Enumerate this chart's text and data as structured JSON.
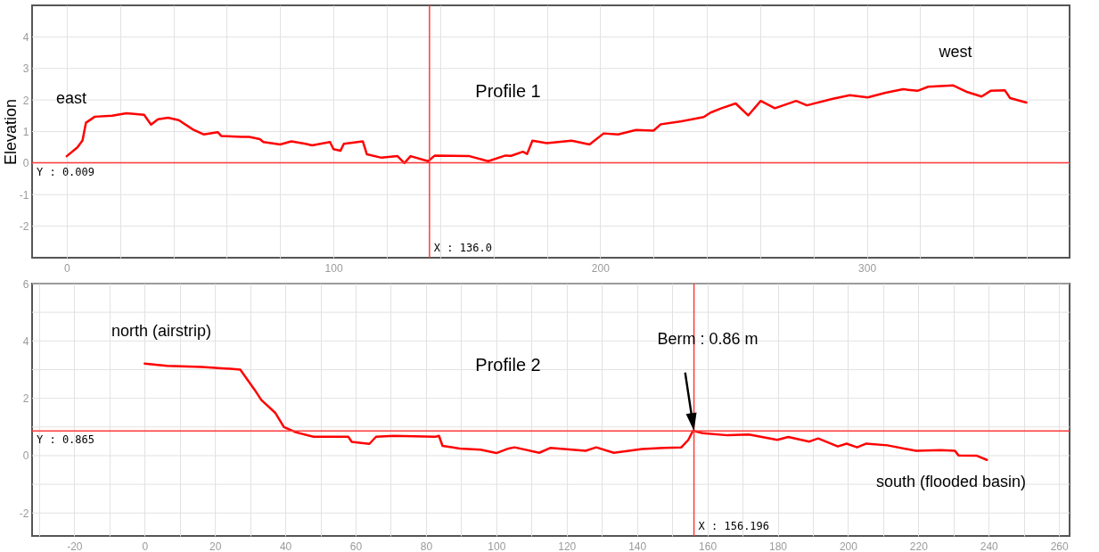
{
  "chart_data": [
    {
      "type": "line",
      "title": "Profile 1",
      "ylabel": "Elevation",
      "x": [
        0,
        4,
        5.9,
        7.2,
        10.5,
        17,
        22.4,
        29,
        31.6,
        34.2,
        38,
        42,
        47.4,
        51.3,
        56.6,
        57.9,
        65.8,
        68.4,
        72.4,
        73.7,
        80,
        84.2,
        89.5,
        92,
        98.7,
        100,
        102.6,
        103.9,
        111,
        112.5,
        118,
        124,
        126.6,
        128.9,
        135.5,
        138,
        151,
        158,
        164.5,
        166.6,
        171,
        172.6,
        174.6,
        180,
        189.3,
        196,
        201.3,
        206.7,
        213.4,
        220,
        222.7,
        229.4,
        238.8,
        241.4,
        245.5,
        250.8,
        255.5,
        260.2,
        265.5,
        273.5,
        277.5,
        286.9,
        293.6,
        300.3,
        307,
        313.6,
        319,
        323,
        332.4,
        337.7,
        343,
        346.4,
        351.7,
        353.7,
        359.8
      ],
      "series": [
        {
          "color": "#ff0000",
          "values": [
            0.22,
            0.5,
            0.72,
            1.28,
            1.47,
            1.5,
            1.58,
            1.53,
            1.22,
            1.39,
            1.44,
            1.36,
            1.06,
            0.91,
            0.98,
            0.86,
            0.83,
            0.83,
            0.76,
            0.67,
            0.59,
            0.69,
            0.61,
            0.56,
            0.67,
            0.44,
            0.39,
            0.61,
            0.69,
            0.28,
            0.17,
            0.22,
            0.0,
            0.22,
            0.06,
            0.24,
            0.22,
            0.06,
            0.24,
            0.23,
            0.36,
            0.29,
            0.71,
            0.63,
            0.71,
            0.59,
            0.94,
            0.91,
            1.05,
            1.03,
            1.23,
            1.31,
            1.46,
            1.6,
            1.74,
            1.89,
            1.51,
            1.97,
            1.74,
            1.97,
            1.83,
            2.03,
            2.15,
            2.08,
            2.23,
            2.34,
            2.29,
            2.42,
            2.46,
            2.25,
            2.11,
            2.29,
            2.31,
            2.06,
            1.92
          ]
        }
      ],
      "xlim": [
        -13,
        376
      ],
      "xticks": [
        0,
        {
          "value": 20,
          "label": null
        },
        {
          "value": 40,
          "label": null
        },
        {
          "value": 60,
          "label": null
        },
        {
          "value": 80,
          "label": null
        },
        100,
        {
          "value": 120,
          "label": null
        },
        {
          "value": 140,
          "label": null
        },
        {
          "value": 160,
          "label": null
        },
        {
          "value": 180,
          "label": null
        },
        200,
        {
          "value": 220,
          "label": null
        },
        {
          "value": 240,
          "label": null
        },
        {
          "value": 260,
          "label": null
        },
        {
          "value": 280,
          "label": null
        },
        300,
        {
          "value": 320,
          "label": null
        },
        {
          "value": 340,
          "label": null
        },
        {
          "value": 360,
          "label": null
        }
      ],
      "ylim": [
        -3,
        5
      ],
      "yticks": [
        -2,
        -1,
        0,
        1,
        2,
        3,
        4
      ],
      "grid": true,
      "ref_lines": [
        {
          "axis": "x",
          "value": 136.0,
          "label": "X : 136.0",
          "color": "#ff3b3b"
        },
        {
          "axis": "y",
          "value": 0.009,
          "label": "Y : 0.009",
          "color": "#ff3b3b"
        }
      ],
      "annotations": [
        "east",
        "west"
      ]
    },
    {
      "type": "line",
      "title": "Profile 2",
      "x": [
        0,
        6.4,
        16.3,
        24.3,
        27.2,
        31.2,
        33.2,
        37.1,
        39.6,
        43.1,
        48,
        57.9,
        58.9,
        63.9,
        65.8,
        70.8,
        82.7,
        83.7,
        84.7,
        89.6,
        95.5,
        100,
        103.5,
        105.2,
        112.2,
        115.3,
        125.4,
        128.4,
        133.4,
        141.5,
        147.6,
        152.6,
        154.6,
        155.9,
        158.7,
        165.8,
        171.8,
        179.9,
        183,
        189,
        191.5,
        197.1,
        199.6,
        202.6,
        205.2,
        211.2,
        219.3,
        226.4,
        230.4,
        231.4,
        236.5,
        239.5
      ],
      "series": [
        {
          "color": "#ff0000",
          "values": [
            3.21,
            3.13,
            3.09,
            3.03,
            3.0,
            2.31,
            1.94,
            1.5,
            1.0,
            0.81,
            0.66,
            0.66,
            0.48,
            0.41,
            0.66,
            0.69,
            0.66,
            0.69,
            0.34,
            0.25,
            0.21,
            0.09,
            0.25,
            0.29,
            0.1,
            0.27,
            0.17,
            0.29,
            0.1,
            0.23,
            0.27,
            0.29,
            0.55,
            0.87,
            0.78,
            0.71,
            0.74,
            0.55,
            0.65,
            0.49,
            0.6,
            0.32,
            0.42,
            0.29,
            0.42,
            0.36,
            0.17,
            0.19,
            0.17,
            0.01,
            0.0,
            -0.15
          ]
        }
      ],
      "xlim": [
        -32,
        263
      ],
      "xticks": [
        {
          "value": -30,
          "label": null
        },
        -20,
        {
          "value": -10,
          "label": null
        },
        0,
        {
          "value": 10,
          "label": null
        },
        20,
        {
          "value": 30,
          "label": null
        },
        40,
        {
          "value": 50,
          "label": null
        },
        60,
        {
          "value": 70,
          "label": null
        },
        80,
        {
          "value": 90,
          "label": null
        },
        100,
        {
          "value": 110,
          "label": null
        },
        120,
        {
          "value": 130,
          "label": null
        },
        140,
        {
          "value": 150,
          "label": null
        },
        160,
        {
          "value": 170,
          "label": null
        },
        180,
        {
          "value": 190,
          "label": null
        },
        200,
        {
          "value": 210,
          "label": null
        },
        220,
        {
          "value": 230,
          "label": null
        },
        240,
        {
          "value": 250,
          "label": null
        },
        260
      ],
      "ylim": [
        -2.8,
        6
      ],
      "yticks": [
        -2,
        {
          "value": -1,
          "label": null
        },
        0,
        {
          "value": 1,
          "label": null
        },
        2,
        {
          "value": 3,
          "label": null
        },
        4,
        {
          "value": 5,
          "label": null
        },
        6
      ],
      "grid": true,
      "ref_lines": [
        {
          "axis": "x",
          "value": 156.196,
          "label": "X : 156.196",
          "color": "#ff3b3b"
        },
        {
          "axis": "y",
          "value": 0.865,
          "label": "Y : 0.865",
          "color": "#ff3b3b"
        }
      ],
      "annotations": [
        "north (airstrip)",
        "Berm : 0.86 m",
        "south (flooded basin)"
      ]
    }
  ]
}
